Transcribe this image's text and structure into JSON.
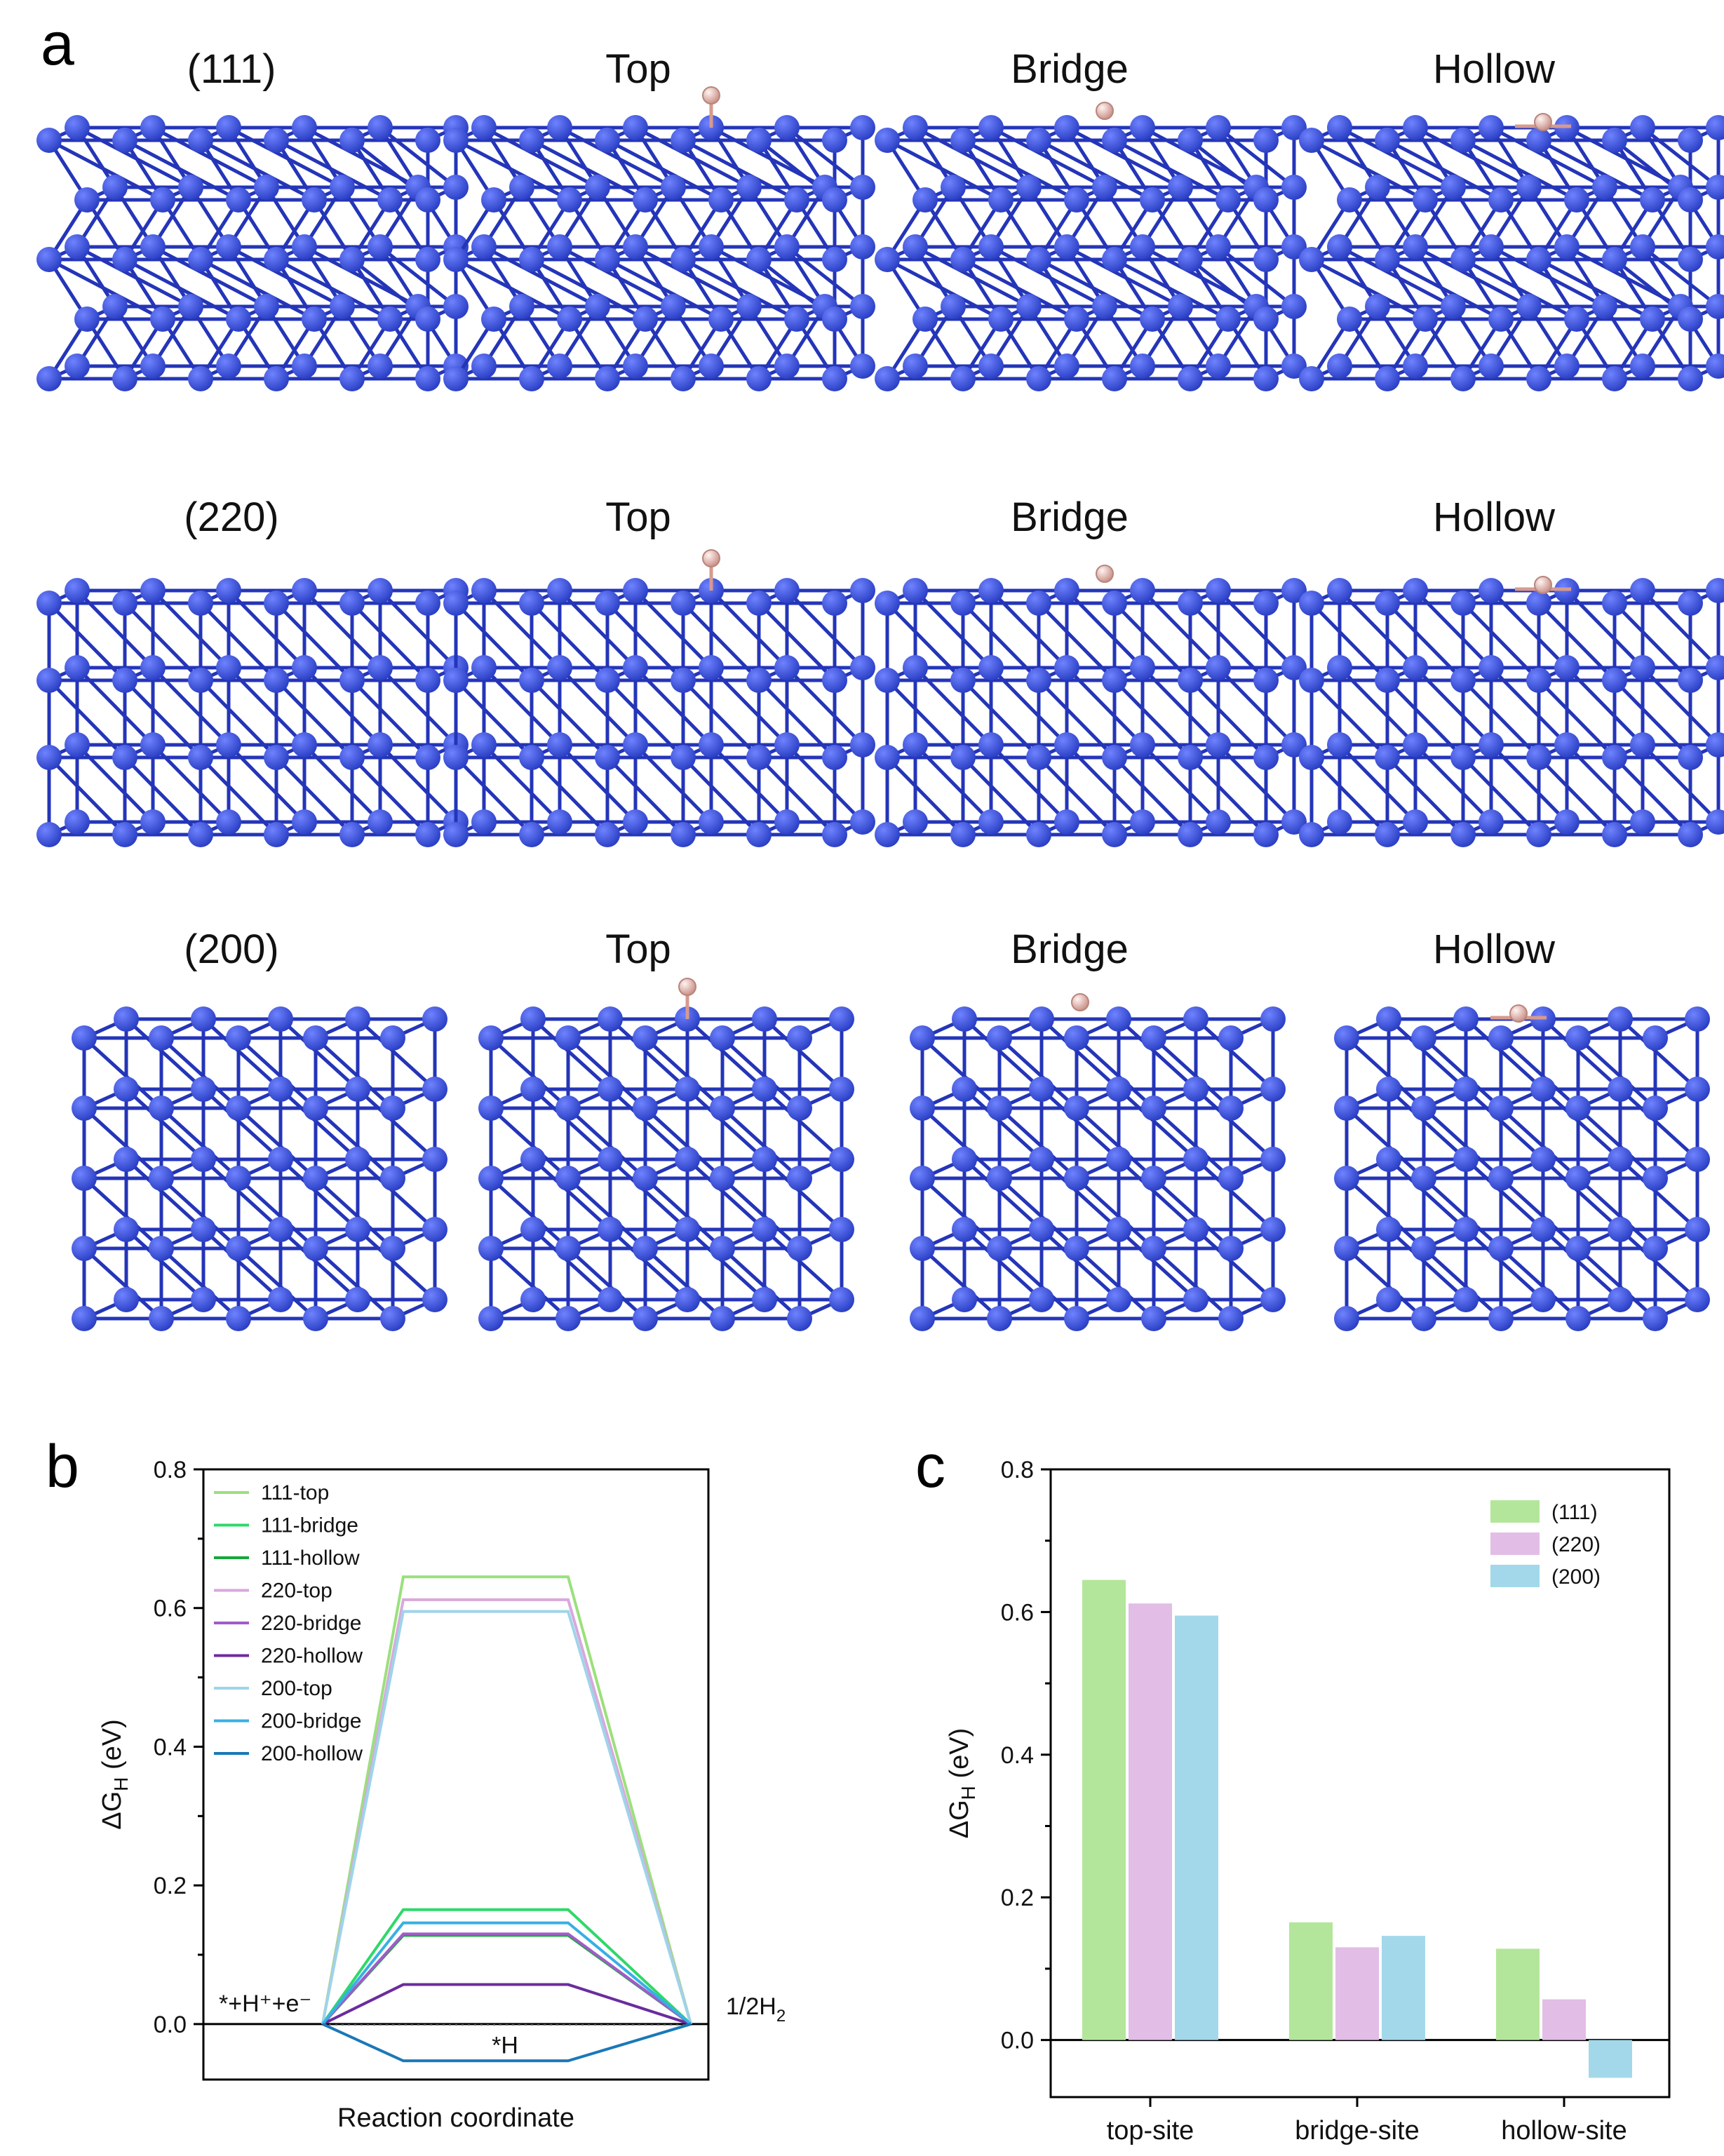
{
  "panel_a": {
    "letter": "a",
    "rows": [
      {
        "name": "111",
        "labels": [
          "(111)",
          "Top",
          "Bridge",
          "Hollow"
        ]
      },
      {
        "name": "220",
        "labels": [
          "(220)",
          "Top",
          "Bridge",
          "Hollow"
        ]
      },
      {
        "name": "200",
        "labels": [
          "(200)",
          "Top",
          "Bridge",
          "Hollow"
        ]
      }
    ],
    "colors": {
      "atom": "#2a3fc4",
      "atom_light": "#6f83ff",
      "bond": "#2435b8",
      "hydrogen": "#e8b8b0"
    }
  },
  "chart_data": [
    {
      "panel": "b",
      "type": "line",
      "xlabel": "Reaction coordinate",
      "ylabel_main": "ΔG",
      "ylabel_sub": "H",
      "ylabel_unit": " (eV)",
      "ylim": [
        -0.08,
        0.8
      ],
      "yticks": [
        "0.0",
        "0.2",
        "0.4",
        "0.6",
        "0.8"
      ],
      "grid": false,
      "legend_position": "top-left",
      "states": [
        "*+H⁺+e⁻",
        "*H",
        "1/2H₂"
      ],
      "left_annotation": "*+H⁺+e⁻",
      "mid_annotation": "*H",
      "right_annotation": "1/2H",
      "right_annotation_sub": "2",
      "series": [
        {
          "name": "111-top",
          "values": [
            0,
            0.645,
            0
          ],
          "color": "#9be07c"
        },
        {
          "name": "111-bridge",
          "values": [
            0,
            0.165,
            0
          ],
          "color": "#2fd86a"
        },
        {
          "name": "111-hollow",
          "values": [
            0,
            0.128,
            0
          ],
          "color": "#14a83a"
        },
        {
          "name": "220-top",
          "values": [
            0,
            0.612,
            0
          ],
          "color": "#d8a8dc"
        },
        {
          "name": "220-bridge",
          "values": [
            0,
            0.13,
            0
          ],
          "color": "#a05cc8"
        },
        {
          "name": "220-hollow",
          "values": [
            0,
            0.057,
            0
          ],
          "color": "#6b2c9e"
        },
        {
          "name": "200-top",
          "values": [
            0,
            0.595,
            0
          ],
          "color": "#9ed4ea"
        },
        {
          "name": "200-bridge",
          "values": [
            0,
            0.146,
            0
          ],
          "color": "#37b0e4"
        },
        {
          "name": "200-hollow",
          "values": [
            0,
            -0.053,
            0
          ],
          "color": "#1a78b8"
        }
      ]
    },
    {
      "panel": "c",
      "type": "bar",
      "xlabel": "",
      "ylabel_main": "ΔG",
      "ylabel_sub": "H",
      "ylabel_unit": " (eV)",
      "ylim": [
        -0.08,
        0.8
      ],
      "yticks": [
        "0.0",
        "0.2",
        "0.4",
        "0.6",
        "0.8"
      ],
      "grid": false,
      "legend_position": "top-right",
      "categories": [
        "top-site",
        "bridge-site",
        "hollow-site"
      ],
      "series": [
        {
          "name": "(111)",
          "values": [
            0.645,
            0.165,
            0.128
          ],
          "color": "#b3e69a"
        },
        {
          "name": "(220)",
          "values": [
            0.612,
            0.13,
            0.057
          ],
          "color": "#e2bde6"
        },
        {
          "name": "(200)",
          "values": [
            0.595,
            0.146,
            -0.053
          ],
          "color": "#a3d8ea"
        }
      ]
    }
  ]
}
